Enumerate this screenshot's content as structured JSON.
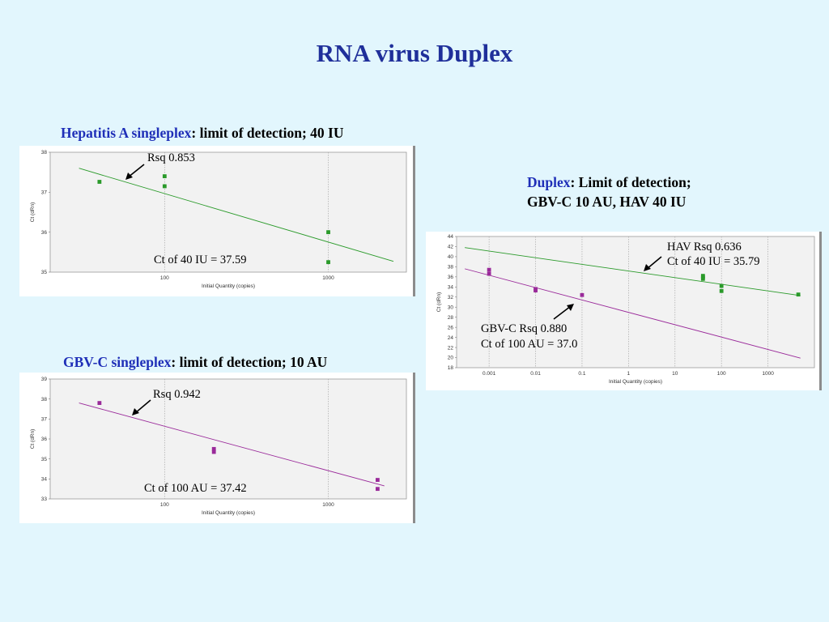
{
  "slide": {
    "title": "RNA virus Duplex"
  },
  "hav_panel": {
    "heading_accent": "Hepatitis A singleplex",
    "heading_rest": ": limit of detection; 40 IU",
    "rsq_label": "Rsq 0.853",
    "ct_label": "Ct of 40 IU = 37.59"
  },
  "gbv_panel": {
    "heading_accent": "GBV-C singleplex",
    "heading_rest": ": limit of detection; 10 AU",
    "rsq_label": "Rsq 0.942",
    "ct_label": "Ct of 100 AU = 37.42"
  },
  "duplex_panel": {
    "heading_accent": "Duplex",
    "heading_rest": ": Limit of detection;",
    "heading_line2": "GBV-C 10 AU, HAV 40 IU",
    "hav_rsq_label": "HAV Rsq 0.636",
    "hav_ct_label": "Ct of 40 IU = 35.79",
    "gbv_rsq_label": "GBV-C Rsq 0.880",
    "gbv_ct_label": "Ct of 100 AU = 37.0"
  },
  "chart_data": [
    {
      "type": "scatter",
      "xlabel": "Initial Quantity (copies)",
      "ylabel": "Ct (dRn)",
      "xscale": "log",
      "xlim": [
        20,
        3000
      ],
      "ylim": [
        35,
        38
      ],
      "xticks": [
        100,
        1000
      ],
      "xtick_labels": [
        "100",
        "1000"
      ],
      "yticks": [
        35,
        36,
        37,
        38
      ],
      "ytick_labels": [
        "35",
        "36",
        "37",
        "38"
      ],
      "grid": true,
      "series": [
        {
          "color": "#2a9a2a",
          "points": [
            [
              40,
              37.26
            ],
            [
              100,
              37.4
            ],
            [
              100,
              37.15
            ],
            [
              1000,
              36.0
            ],
            [
              1000,
              35.25
            ]
          ],
          "fit": [
            [
              30,
              37.6
            ],
            [
              2500,
              35.27
            ]
          ]
        }
      ]
    },
    {
      "type": "scatter",
      "xlabel": "Initial Quantity (copies)",
      "ylabel": "Ct (dRn)",
      "xscale": "log",
      "xlim": [
        20,
        3000
      ],
      "ylim": [
        33,
        39
      ],
      "xticks": [
        100,
        1000
      ],
      "xtick_labels": [
        "100",
        "1000"
      ],
      "yticks": [
        33,
        34,
        35,
        36,
        37,
        38,
        39
      ],
      "ytick_labels": [
        "33",
        "34",
        "35",
        "36",
        "37",
        "38",
        "39"
      ],
      "grid": true,
      "series": [
        {
          "color": "#9a2a9a",
          "points": [
            [
              40,
              37.8
            ],
            [
              200,
              35.5
            ],
            [
              200,
              35.35
            ],
            [
              2000,
              33.95
            ],
            [
              2000,
              33.5
            ]
          ],
          "fit": [
            [
              30,
              37.8
            ],
            [
              2200,
              33.65
            ]
          ]
        }
      ]
    },
    {
      "type": "scatter",
      "xlabel": "Initial Quantity (copies)",
      "ylabel": "Ct (dRn)",
      "xscale": "log",
      "xlim": [
        0.0002,
        10000
      ],
      "ylim": [
        18,
        44
      ],
      "xticks": [
        0.001,
        0.01,
        0.1,
        1,
        10,
        100,
        1000
      ],
      "xtick_labels": [
        "0.001",
        "0.01",
        "0.1",
        "1",
        "10",
        "100",
        "1000"
      ],
      "yticks": [
        18,
        20,
        22,
        24,
        26,
        28,
        30,
        32,
        34,
        36,
        38,
        40,
        42,
        44
      ],
      "ytick_labels": [
        "18",
        "20",
        "22",
        "24",
        "26",
        "28",
        "30",
        "32",
        "34",
        "36",
        "38",
        "40",
        "42",
        "44"
      ],
      "grid": true,
      "series": [
        {
          "color": "#2a9a2a",
          "points": [
            [
              40,
              36.2
            ],
            [
              40,
              35.9
            ],
            [
              40,
              35.6
            ],
            [
              100,
              34.2
            ],
            [
              100,
              33.2
            ],
            [
              4500,
              32.5
            ]
          ],
          "fit": [
            [
              0.0003,
              41.8
            ],
            [
              5000,
              32.3
            ]
          ]
        },
        {
          "color": "#9a2a9a",
          "points": [
            [
              0.001,
              37.4
            ],
            [
              0.001,
              36.6
            ],
            [
              0.01,
              33.6
            ],
            [
              0.01,
              33.3
            ],
            [
              0.1,
              32.4
            ]
          ],
          "fit": [
            [
              0.0003,
              37.6
            ],
            [
              5000,
              19.9
            ]
          ]
        }
      ]
    }
  ]
}
